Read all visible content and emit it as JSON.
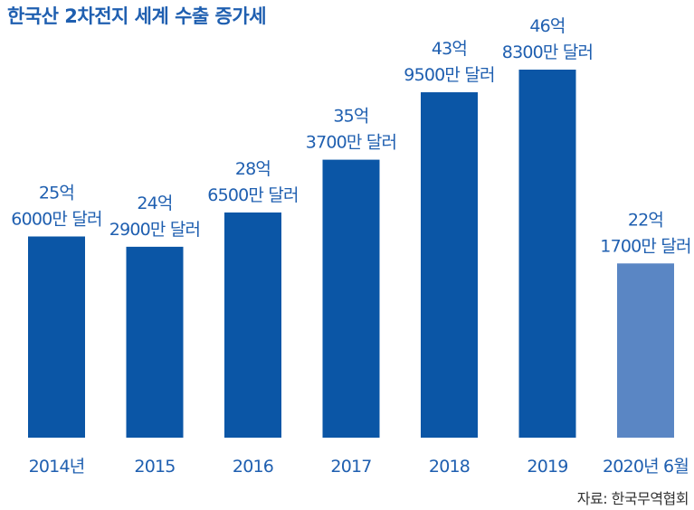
{
  "title": "한국산 2차전지 세계 수출 증가세",
  "source": "자료: 한국무역협회",
  "colors": {
    "bar": "#0b56a6",
    "bar_partial": "#5a86c4",
    "text": "#1f5fb0"
  },
  "chart_data": {
    "type": "bar",
    "categories": [
      "2014년",
      "2015",
      "2016",
      "2017",
      "2018",
      "2019",
      "2020년 6월"
    ],
    "values": [
      25.6,
      24.29,
      28.65,
      35.37,
      43.95,
      46.83,
      22.17
    ],
    "unit": "억 달러",
    "data_labels": [
      [
        "25억",
        "6000만 달러"
      ],
      [
        "24억",
        "2900만 달러"
      ],
      [
        "28억",
        "6500만 달러"
      ],
      [
        "35억",
        "3700만 달러"
      ],
      [
        "43억",
        "9500만 달러"
      ],
      [
        "46억",
        "8300만 달러"
      ],
      [
        "22억",
        "1700만 달러"
      ]
    ],
    "highlight_last": true,
    "ylim": [
      0,
      46.83
    ],
    "grid": false
  }
}
